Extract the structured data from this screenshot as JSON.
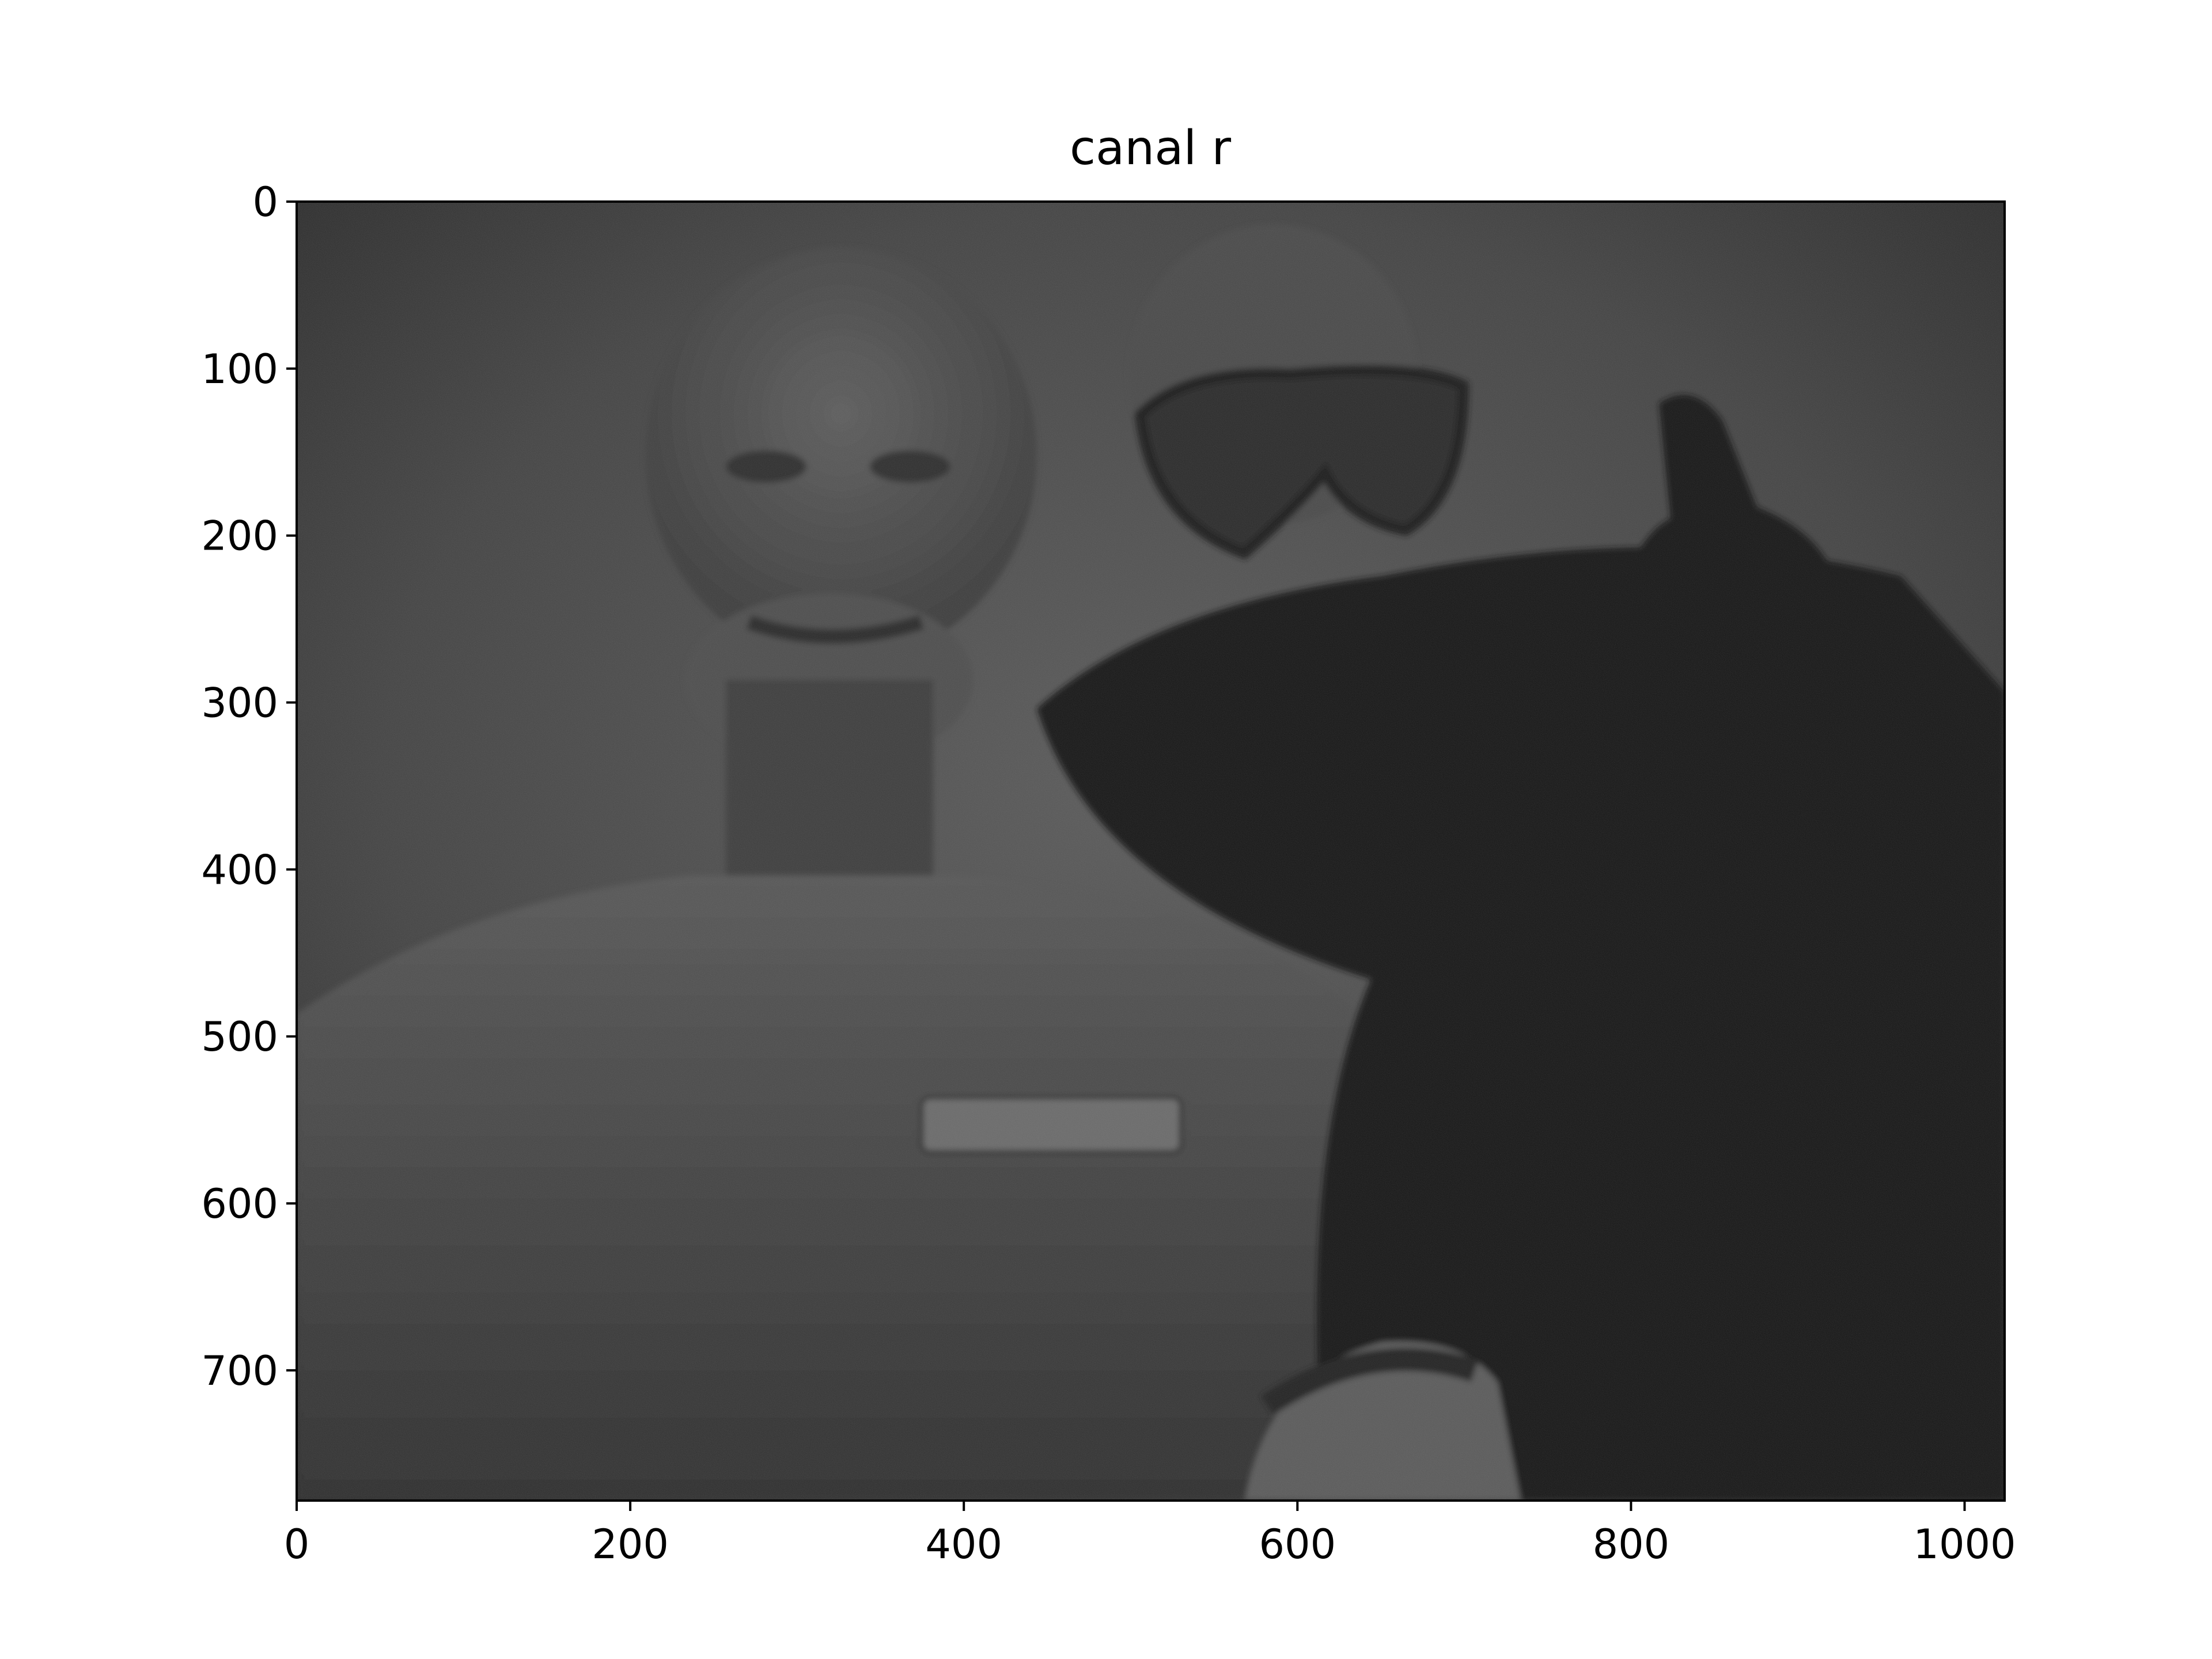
{
  "chart_data": {
    "type": "heatmap",
    "colormap": "gray",
    "title": "canal r",
    "xlabel": "",
    "ylabel": "",
    "xlim": [
      0,
      1024
    ],
    "ylim": [
      778,
      0
    ],
    "xticks": [
      0,
      200,
      400,
      600,
      800,
      1000
    ],
    "yticks": [
      0,
      100,
      200,
      300,
      400,
      500,
      600,
      700
    ],
    "xtick_labels": [
      "0",
      "200",
      "400",
      "600",
      "800",
      "1000"
    ],
    "ytick_labels": [
      "0",
      "100",
      "200",
      "300",
      "400",
      "500",
      "600",
      "700"
    ],
    "grid": false,
    "legend": "none"
  }
}
